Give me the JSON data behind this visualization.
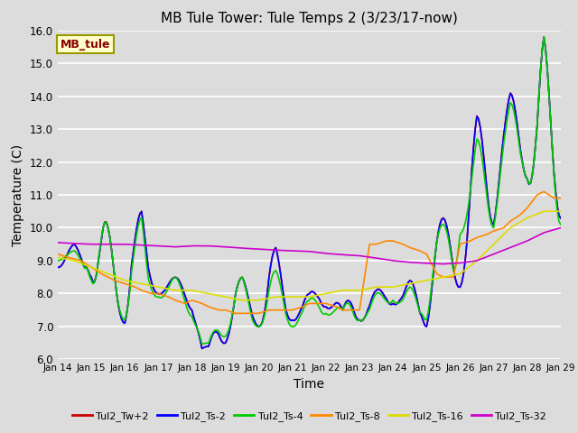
{
  "title": "MB Tule Tower: Tule Temps 2 (3/23/17-now)",
  "xlabel": "Time",
  "ylabel": "Temperature (C)",
  "ylim": [
    6.0,
    16.0
  ],
  "yticks": [
    6.0,
    7.0,
    8.0,
    9.0,
    10.0,
    11.0,
    12.0,
    13.0,
    14.0,
    15.0,
    16.0
  ],
  "bg_color": "#dcdcdc",
  "station_label": "MB_tule",
  "x_tick_labels": [
    "Jan 14",
    "Jan 15",
    "Jan 16",
    "Jan 17",
    "Jan 18",
    "Jan 19",
    "Jan 20",
    "Jan 21",
    "Jan 22",
    "Jan 23",
    "Jan 24",
    "Jan 25",
    "Jan 26",
    "Jan 27",
    "Jan 28",
    "Jan 29"
  ],
  "series_order": [
    "Tul2_Tw+2",
    "Tul2_Ts-2",
    "Tul2_Ts-4",
    "Tul2_Ts-8",
    "Tul2_Ts-16",
    "Tul2_Ts-32"
  ],
  "series": {
    "Tul2_Tw+2": {
      "color": "#cc0000",
      "lw": 1.2
    },
    "Tul2_Ts-2": {
      "color": "#0000ff",
      "lw": 1.2
    },
    "Tul2_Ts-4": {
      "color": "#00cc00",
      "lw": 1.2
    },
    "Tul2_Ts-8": {
      "color": "#ff8800",
      "lw": 1.2
    },
    "Tul2_Ts-16": {
      "color": "#dddd00",
      "lw": 1.2
    },
    "Tul2_Ts-32": {
      "color": "#cc00cc",
      "lw": 1.2
    }
  },
  "legend_entries": [
    "Tul2_Tw+2",
    "Tul2_Ts-2",
    "Tul2_Ts-4",
    "Tul2_Ts-8",
    "Tul2_Ts-16",
    "Tul2_Ts-32"
  ],
  "legend_colors": [
    "#cc0000",
    "#0000ff",
    "#00cc00",
    "#ff8800",
    "#dddd00",
    "#cc00cc"
  ]
}
